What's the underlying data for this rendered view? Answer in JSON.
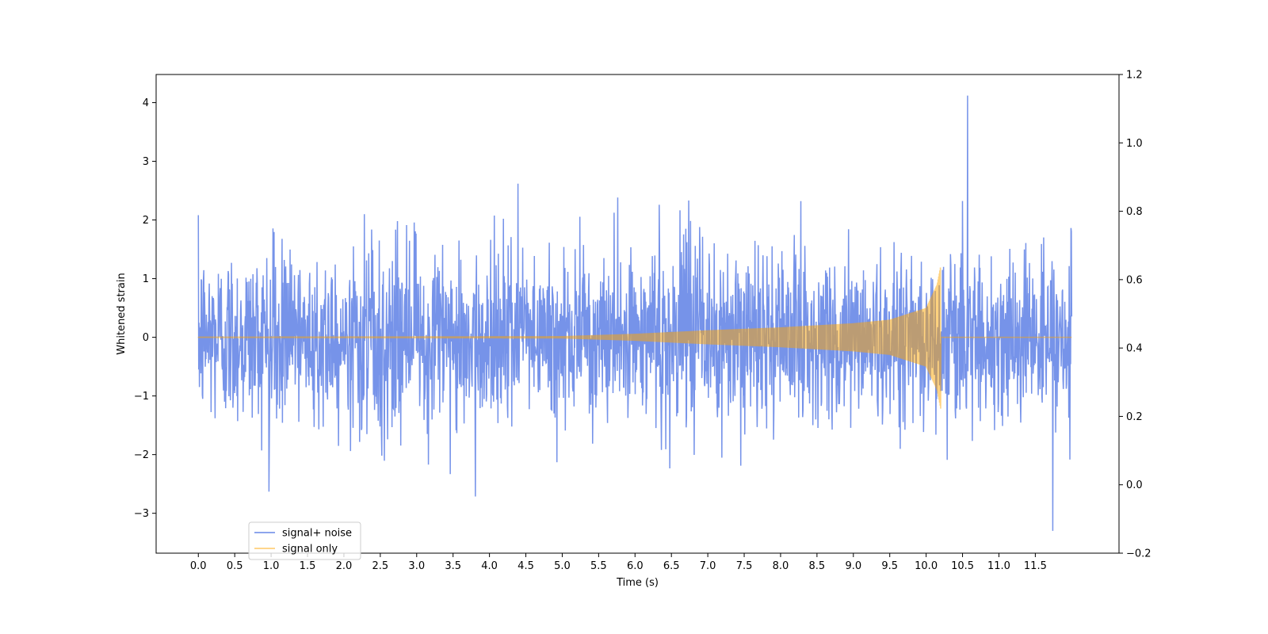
{
  "chart_data": {
    "type": "line",
    "title": "",
    "xlabel": "Time (s)",
    "ylabel": "Whitened strain",
    "xlim": [
      -0.58,
      12.65
    ],
    "ylim": [
      -3.68,
      4.48
    ],
    "y2lim": [
      -0.2,
      1.2
    ],
    "xticks": [
      "0.0",
      "0.5",
      "1.0",
      "1.5",
      "2.0",
      "2.5",
      "3.0",
      "3.5",
      "4.0",
      "4.5",
      "5.0",
      "5.5",
      "6.0",
      "6.5",
      "7.0",
      "7.5",
      "8.0",
      "8.5",
      "9.0",
      "9.5",
      "10.0",
      "10.5",
      "11.0",
      "11.5"
    ],
    "yticks": [
      -3,
      -2,
      -1,
      0,
      1,
      2,
      3,
      4
    ],
    "yticklabels": [
      "−3",
      "−2",
      "−1",
      "0",
      "1",
      "2",
      "3",
      "4"
    ],
    "y2ticks": [
      "−0.2",
      "0.0",
      "0.2",
      "0.4",
      "0.6",
      "0.8",
      "1.0",
      "1.2"
    ],
    "y2tickvalues": [
      -0.2,
      0.0,
      0.2,
      0.4,
      0.6,
      0.8,
      1.0,
      1.2
    ],
    "grid": false,
    "legend_position": "lower-left",
    "series": [
      {
        "name": "signal+ noise",
        "color": "#4169e1",
        "x_range": [
          0.0,
          12.0
        ],
        "noise_std": 0.75,
        "min": -3.3,
        "max": 4.12,
        "peak_at": 10.57
      },
      {
        "name": "signal only",
        "color": "#ffa500",
        "x_range": [
          0.0,
          12.0
        ],
        "merger_time": 10.2,
        "envelope": [
          {
            "x": 0.0,
            "amp": 0.01
          },
          {
            "x": 5.0,
            "amp": 0.02
          },
          {
            "x": 6.0,
            "amp": 0.06
          },
          {
            "x": 7.0,
            "amp": 0.12
          },
          {
            "x": 8.0,
            "amp": 0.17
          },
          {
            "x": 9.0,
            "amp": 0.24
          },
          {
            "x": 9.5,
            "amp": 0.3
          },
          {
            "x": 10.0,
            "amp": 0.5
          },
          {
            "x": 10.15,
            "amp": 0.9
          },
          {
            "x": 10.2,
            "amp": 1.22
          }
        ]
      }
    ]
  }
}
